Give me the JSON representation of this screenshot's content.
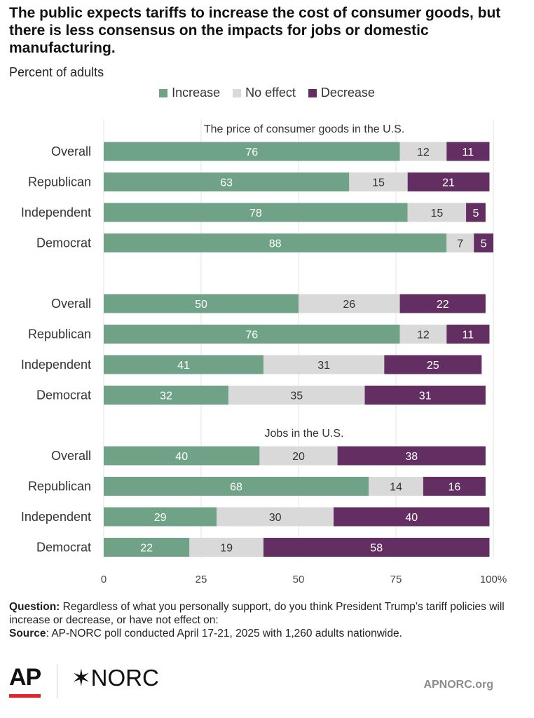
{
  "title": "The public expects tariffs to increase the cost of consumer goods, but there is less consensus on the impacts for jobs or domestic manufacturing.",
  "subtitle": "Percent of adults",
  "legend": [
    {
      "label": "Increase",
      "color": "#6fa287"
    },
    {
      "label": "No effect",
      "color": "#d9d9d9"
    },
    {
      "label": "Decrease",
      "color": "#632e62"
    }
  ],
  "chart_data": {
    "type": "bar",
    "orientation": "horizontal",
    "stacked": true,
    "xlim": [
      0,
      100
    ],
    "xticks": [
      "0",
      "25",
      "50",
      "75",
      "100"
    ],
    "x_unit": "%",
    "grid": true,
    "legend_position": "top",
    "groups": [
      {
        "label": "The price of consumer goods in the U.S.",
        "rows": [
          {
            "category": "Overall",
            "values": [
              76,
              12,
              11
            ]
          },
          {
            "category": "Republican",
            "values": [
              63,
              15,
              21
            ]
          },
          {
            "category": "Independent",
            "values": [
              78,
              15,
              5
            ]
          },
          {
            "category": "Democrat",
            "values": [
              88,
              7,
              5
            ]
          }
        ]
      },
      {
        "label": "",
        "rows": [
          {
            "category": "Overall",
            "values": [
              50,
              26,
              22
            ]
          },
          {
            "category": "Republican",
            "values": [
              76,
              12,
              11
            ]
          },
          {
            "category": "Independent",
            "values": [
              41,
              31,
              25
            ]
          },
          {
            "category": "Democrat",
            "values": [
              32,
              35,
              31
            ]
          }
        ]
      },
      {
        "label": "Jobs in the U.S.",
        "rows": [
          {
            "category": "Overall",
            "values": [
              40,
              20,
              38
            ]
          },
          {
            "category": "Republican",
            "values": [
              68,
              14,
              16
            ]
          },
          {
            "category": "Independent",
            "values": [
              29,
              30,
              40
            ]
          },
          {
            "category": "Democrat",
            "values": [
              22,
              19,
              58
            ]
          }
        ]
      }
    ]
  },
  "footer": {
    "question_label": "Question:",
    "question_text": " Regardless of what you personally support, do you think President Trump’s tariff policies will increase or decrease, or have not effect on:",
    "source_label": "Source",
    "source_text": ": AP-NORC poll conducted April 17-21, 2025 with 1,260 adults nationwide."
  },
  "branding": {
    "ap": "AP",
    "norc": "NORC",
    "norc_mark": "✶",
    "site": "APNORC.org"
  }
}
